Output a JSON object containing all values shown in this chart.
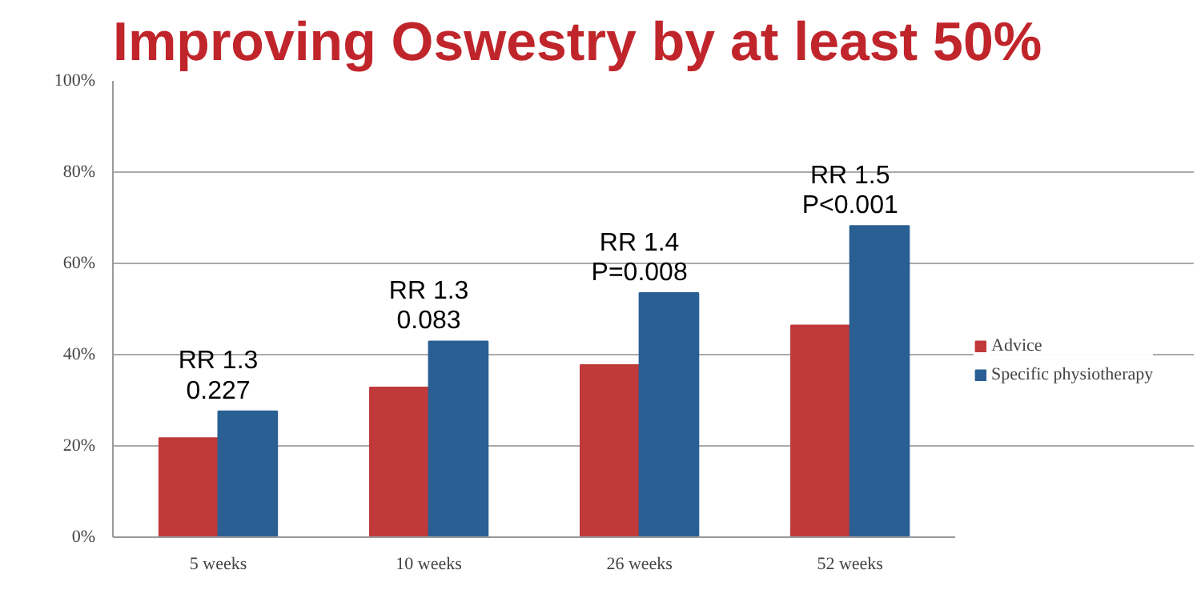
{
  "chart_data": {
    "type": "bar",
    "title": "Improving Oswestry by at least 50%",
    "categories": [
      "5 weeks",
      "10 weeks",
      "26 weeks",
      "52 weeks"
    ],
    "series": [
      {
        "name": "Advice",
        "color": "#c0393b",
        "values": [
          21.7,
          32.8,
          37.7,
          46.4
        ]
      },
      {
        "name": "Specific physiotherapy",
        "color": "#2a5f93",
        "values": [
          27.6,
          42.9,
          53.5,
          68.2
        ]
      }
    ],
    "ylim": [
      0,
      100
    ],
    "yticks": [
      {
        "value": 0,
        "label": "0%"
      },
      {
        "value": 20,
        "label": "20%"
      },
      {
        "value": 40,
        "label": "40%"
      },
      {
        "value": 60,
        "label": "60%"
      },
      {
        "value": 80,
        "label": "80%"
      },
      {
        "value": 100,
        "label": "100%"
      }
    ],
    "grid": "y",
    "legend": "right",
    "annotations": [
      {
        "text": "RR 1.3\n0.227",
        "x": "5 weeks",
        "y": 27.6
      },
      {
        "text": "RR 1.3\n0.083",
        "x": "10 weeks",
        "y": 42.9
      },
      {
        "text": "RR 1.4\nP=0.008",
        "x": "26 weeks",
        "y": 53.5
      },
      {
        "text": "RR 1.5\nP<0.001",
        "x": "52 weeks",
        "y": 68.2
      }
    ]
  }
}
